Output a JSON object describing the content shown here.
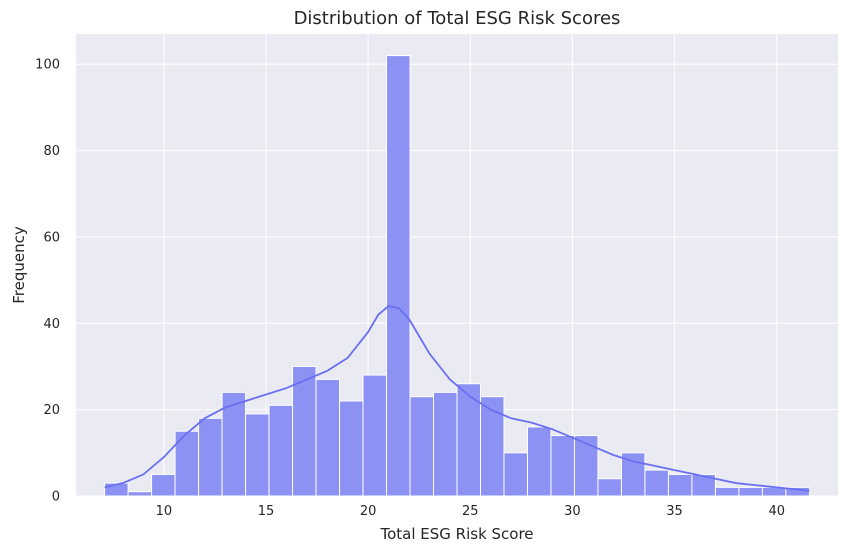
{
  "chart_data": {
    "type": "bar",
    "subtype": "histogram",
    "title": "Distribution of Total ESG Risk Scores",
    "xlabel": "Total ESG Risk Score",
    "ylabel": "Frequency",
    "xlim": [
      5.7,
      43.0
    ],
    "ylim": [
      0,
      107
    ],
    "grid": true,
    "xticks": [
      10,
      15,
      20,
      25,
      30,
      35,
      40
    ],
    "yticks": [
      0,
      20,
      40,
      60,
      80,
      100
    ],
    "bin_start": 7.1,
    "bin_width": 1.15,
    "counts": [
      3,
      1,
      5,
      15,
      18,
      24,
      19,
      21,
      30,
      27,
      22,
      28,
      102,
      23,
      24,
      26,
      23,
      10,
      16,
      14,
      14,
      4,
      10,
      6,
      5,
      5,
      2,
      2,
      2,
      2
    ],
    "kde": {
      "x": [
        7.1,
        8,
        9,
        10,
        11,
        12,
        13,
        14,
        15,
        16,
        17,
        18,
        19,
        20,
        20.5,
        21,
        21.5,
        22,
        22.5,
        23,
        24,
        25,
        26,
        27,
        28,
        29,
        30,
        31,
        32,
        33,
        34,
        35,
        36,
        37,
        38,
        39,
        40,
        41,
        41.6
      ],
      "y": [
        2,
        3,
        5,
        9,
        14,
        18,
        20.5,
        22,
        23.5,
        25,
        27,
        29,
        32,
        38,
        42,
        44,
        43.5,
        41,
        37,
        33,
        27,
        23,
        20,
        18,
        17,
        15.5,
        13.5,
        11.5,
        9.5,
        8,
        7,
        6,
        5,
        4,
        3,
        2.5,
        2,
        1.5,
        1.2
      ]
    },
    "colors": {
      "bar": "#8c92f3",
      "bar_edge": "#ffffff",
      "kde_line": "#6a6ff2",
      "plot_background": "#eaeaf2",
      "grid": "#ffffff"
    }
  }
}
